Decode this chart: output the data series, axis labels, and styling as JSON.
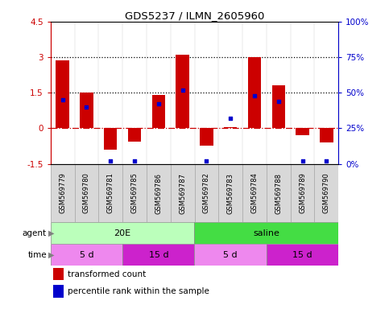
{
  "title": "GDS5237 / ILMN_2605960",
  "samples": [
    "GSM569779",
    "GSM569780",
    "GSM569781",
    "GSM569785",
    "GSM569786",
    "GSM569787",
    "GSM569782",
    "GSM569783",
    "GSM569784",
    "GSM569788",
    "GSM569789",
    "GSM569790"
  ],
  "bar_values": [
    2.85,
    1.5,
    -0.9,
    -0.55,
    1.4,
    3.1,
    -0.75,
    0.05,
    3.0,
    1.8,
    -0.3,
    -0.6
  ],
  "blue_dot_percentiles": [
    45,
    40,
    2,
    2,
    42,
    52,
    2,
    32,
    48,
    44,
    2,
    2
  ],
  "ylim": [
    -1.5,
    4.5
  ],
  "bar_color": "#cc0000",
  "blue_dot_color": "#0000cc",
  "agent_groups": [
    {
      "label": "20E",
      "start": 0,
      "end": 6,
      "color": "#bbffbb"
    },
    {
      "label": "saline",
      "start": 6,
      "end": 12,
      "color": "#44dd44"
    }
  ],
  "time_groups": [
    {
      "label": "5 d",
      "start": 0,
      "end": 3,
      "color": "#ee88ee"
    },
    {
      "label": "15 d",
      "start": 3,
      "end": 6,
      "color": "#cc22cc"
    },
    {
      "label": "5 d",
      "start": 6,
      "end": 9,
      "color": "#ee88ee"
    },
    {
      "label": "15 d",
      "start": 9,
      "end": 12,
      "color": "#cc22cc"
    }
  ],
  "legend_items": [
    {
      "label": "transformed count",
      "color": "#cc0000"
    },
    {
      "label": "percentile rank within the sample",
      "color": "#0000cc"
    }
  ]
}
